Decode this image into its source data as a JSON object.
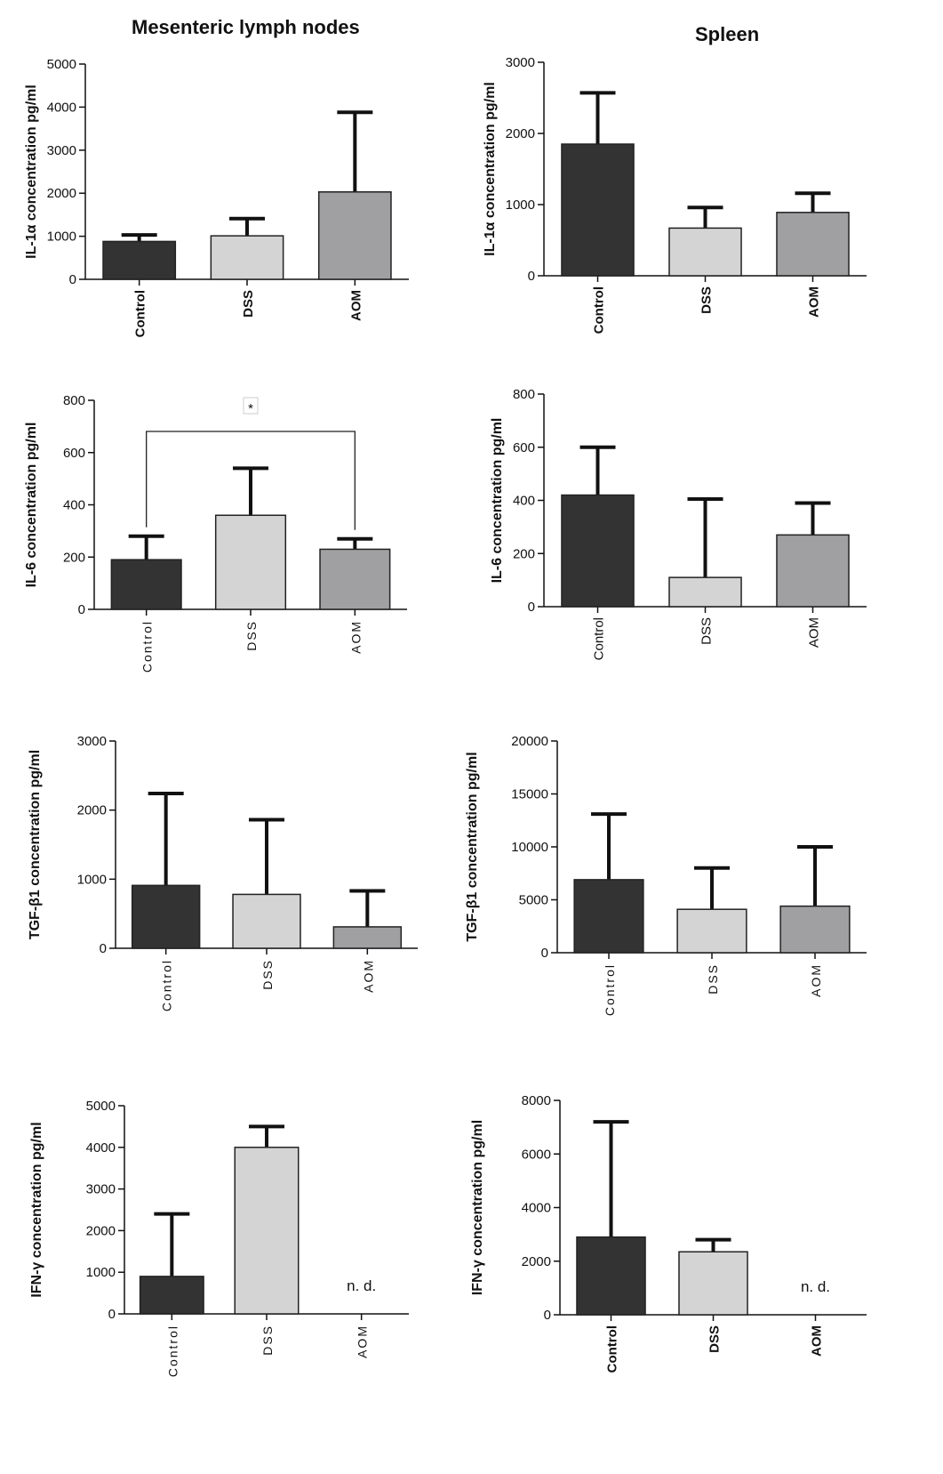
{
  "column_titles": {
    "left": "Mesenteric lymph nodes",
    "right": "Spleen"
  },
  "chart_data": [
    {
      "type": "bar",
      "title": "",
      "xlabel": "",
      "ylabel": "IL-1α concentration pg/ml",
      "categories": [
        "Control",
        "DSS",
        "AOM"
      ],
      "values": [
        880,
        1010,
        2030
      ],
      "errors": [
        150,
        400,
        1850
      ],
      "ylim": [
        0,
        5000
      ],
      "yticks": [
        "0",
        "1000",
        "2000",
        "3000",
        "4000",
        "5000"
      ],
      "colors": [
        "#333333",
        "#d4d4d4",
        "#a0a0a2"
      ],
      "annotations": [],
      "significance": null
    },
    {
      "type": "bar",
      "title": "",
      "xlabel": "",
      "ylabel": "IL-1α concentration pg/ml",
      "categories": [
        "Control",
        "DSS",
        "AOM"
      ],
      "values": [
        1850,
        670,
        890
      ],
      "errors": [
        720,
        290,
        270
      ],
      "ylim": [
        0,
        3000
      ],
      "yticks": [
        "0",
        "1000",
        "2000",
        "3000"
      ],
      "colors": [
        "#333333",
        "#d4d4d4",
        "#a0a0a2"
      ],
      "annotations": [],
      "significance": null
    },
    {
      "type": "bar",
      "title": "",
      "xlabel": "",
      "ylabel": "IL-6 concentration pg/ml",
      "categories": [
        "Control",
        "DSS",
        "AOM"
      ],
      "values": [
        190,
        360,
        230
      ],
      "errors": [
        90,
        180,
        40
      ],
      "ylim": [
        0,
        800
      ],
      "yticks": [
        "0",
        "200",
        "400",
        "600",
        "800"
      ],
      "colors": [
        "#333333",
        "#d4d4d4",
        "#a0a0a2"
      ],
      "annotations": [],
      "significance": {
        "from": "Control",
        "to": "AOM",
        "label": "*"
      }
    },
    {
      "type": "bar",
      "title": "",
      "xlabel": "",
      "ylabel": "IL-6 concentration pg/ml",
      "categories": [
        "Control",
        "DSS",
        "AOM"
      ],
      "values": [
        420,
        110,
        270
      ],
      "errors": [
        180,
        295,
        120
      ],
      "ylim": [
        0,
        800
      ],
      "yticks": [
        "0",
        "200",
        "400",
        "600",
        "800"
      ],
      "colors": [
        "#333333",
        "#d4d4d4",
        "#a0a0a2"
      ],
      "annotations": [],
      "significance": null
    },
    {
      "type": "bar",
      "title": "",
      "xlabel": "",
      "ylabel": "TGF-β1 concentration pg/ml",
      "categories": [
        "Control",
        "DSS",
        "AOM"
      ],
      "values": [
        910,
        780,
        310
      ],
      "errors": [
        1330,
        1080,
        520
      ],
      "ylim": [
        0,
        3000
      ],
      "yticks": [
        "0",
        "1000",
        "2000",
        "3000"
      ],
      "colors": [
        "#333333",
        "#d4d4d4",
        "#a0a0a2"
      ],
      "annotations": [],
      "significance": null
    },
    {
      "type": "bar",
      "title": "",
      "xlabel": "",
      "ylabel": "TGF-β1 concentration pg/ml",
      "categories": [
        "Control",
        "DSS",
        "AOM"
      ],
      "values": [
        6900,
        4100,
        4400
      ],
      "errors": [
        6200,
        3900,
        5600
      ],
      "ylim": [
        0,
        20000
      ],
      "yticks": [
        "0",
        "5000",
        "10000",
        "15000",
        "20000"
      ],
      "colors": [
        "#333333",
        "#d4d4d4",
        "#a0a0a2"
      ],
      "annotations": [],
      "significance": null
    },
    {
      "type": "bar",
      "title": "",
      "xlabel": "",
      "ylabel": "IFN-γ concentration pg/ml",
      "categories": [
        "Control",
        "DSS",
        "AOM"
      ],
      "values": [
        900,
        4000,
        null
      ],
      "errors": [
        1500,
        500,
        null
      ],
      "ylim": [
        0,
        5000
      ],
      "yticks": [
        "0",
        "1000",
        "2000",
        "3000",
        "4000",
        "5000"
      ],
      "colors": [
        "#333333",
        "#d4d4d4",
        "#a0a0a2"
      ],
      "annotations": [
        {
          "category": "AOM",
          "text": "n. d."
        }
      ],
      "significance": null
    },
    {
      "type": "bar",
      "title": "",
      "xlabel": "",
      "ylabel": "IFN-γ concentration pg/ml",
      "categories": [
        "Control",
        "DSS",
        "AOM"
      ],
      "values": [
        2900,
        2350,
        null
      ],
      "errors": [
        4300,
        450,
        null
      ],
      "ylim": [
        0,
        8000
      ],
      "yticks": [
        "0",
        "2000",
        "4000",
        "6000",
        "8000"
      ],
      "colors": [
        "#333333",
        "#d4d4d4",
        "#a0a0a2"
      ],
      "annotations": [
        {
          "category": "AOM",
          "text": "n. d."
        }
      ],
      "significance": null
    }
  ]
}
